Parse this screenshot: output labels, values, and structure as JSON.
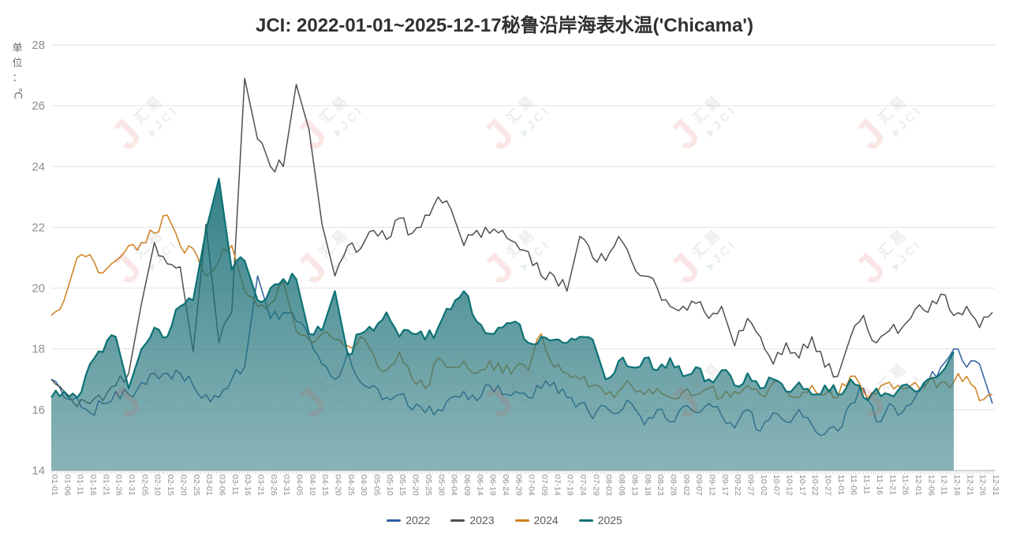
{
  "title": "JCI: 2022-01-01~2025-12-17秘鲁沿岸海表水温('Chicama')",
  "y_axis": {
    "unit_label": "单位：℃",
    "unit_chars": [
      "单",
      "位",
      "：",
      "℃"
    ],
    "ticks": [
      14,
      16,
      18,
      20,
      22,
      24,
      26,
      28
    ]
  },
  "watermark": {
    "logo_char": "J",
    "text_top": "汇易",
    "text_bottom": "JCI",
    "logo_color": "#d9534f",
    "triangle_color": "#5f9e5f",
    "text_color": "#808080",
    "opacity": 0.14,
    "cols": [
      140,
      375,
      612,
      848,
      1083
    ],
    "rows": [
      128,
      298,
      468
    ]
  },
  "legend": {
    "position": "bottom"
  },
  "chart_data": {
    "type": "line",
    "title": "JCI: 2022-01-01~2025-12-17秘鲁沿岸海表水温('Chicama')",
    "ylabel": "单位：℃",
    "ylim": [
      14,
      28
    ],
    "y_tick_step": 2,
    "grid": "horizontal",
    "legend_position": "bottom",
    "x_step_days": 5,
    "x_minor_tick_count": 366,
    "x": [
      "01-01",
      "01-06",
      "01-11",
      "01-16",
      "01-21",
      "01-26",
      "01-31",
      "02-05",
      "02-10",
      "02-15",
      "02-20",
      "02-25",
      "03-01",
      "03-06",
      "03-11",
      "03-16",
      "03-21",
      "03-26",
      "03-31",
      "04-05",
      "04-10",
      "04-15",
      "04-20",
      "04-25",
      "04-30",
      "05-05",
      "05-10",
      "05-15",
      "05-20",
      "05-25",
      "05-30",
      "06-04",
      "06-09",
      "06-14",
      "06-19",
      "06-24",
      "06-29",
      "07-04",
      "07-09",
      "07-14",
      "07-19",
      "07-24",
      "07-29",
      "08-03",
      "08-08",
      "08-13",
      "08-18",
      "08-23",
      "08-28",
      "09-02",
      "09-07",
      "09-12",
      "09-17",
      "09-22",
      "09-27",
      "10-02",
      "10-07",
      "10-12",
      "10-17",
      "10-22",
      "10-27",
      "11-01",
      "11-06",
      "11-11",
      "11-16",
      "11-21",
      "11-26",
      "12-01",
      "12-06",
      "12-11",
      "12-16",
      "12-21",
      "12-26",
      "12-31"
    ],
    "series": [
      {
        "name": "2022",
        "color": "#2d5f9f",
        "area": false,
        "values": [
          17.0,
          16.4,
          16.4,
          15.9,
          16.2,
          16.6,
          16.5,
          16.9,
          17.2,
          17.2,
          17.2,
          16.8,
          16.5,
          16.4,
          17.0,
          17.4,
          20.4,
          19.0,
          19.2,
          18.9,
          18.4,
          17.5,
          17.0,
          17.9,
          16.9,
          16.8,
          16.4,
          16.5,
          16.0,
          15.9,
          16.0,
          16.4,
          16.6,
          16.3,
          16.8,
          16.5,
          16.6,
          16.4,
          16.7,
          16.9,
          16.4,
          16.2,
          15.7,
          16.1,
          15.9,
          16.2,
          15.5,
          16.0,
          15.6,
          16.1,
          15.9,
          16.2,
          15.8,
          15.4,
          16.0,
          15.3,
          15.9,
          15.6,
          16.0,
          15.5,
          15.2,
          15.3,
          16.2,
          16.7,
          15.6,
          16.2,
          15.9,
          16.4,
          16.9,
          17.4,
          18.0,
          17.4,
          17.5,
          16.2
        ]
      },
      {
        "name": "2023",
        "color": "#4f4f4f",
        "area": false,
        "values": [
          17.0,
          16.6,
          16.1,
          16.2,
          16.3,
          16.8,
          17.2,
          19.5,
          21.5,
          20.8,
          20.7,
          17.9,
          22.1,
          18.2,
          19.2,
          26.9,
          24.9,
          24.0,
          24.0,
          26.7,
          25.2,
          22.1,
          20.4,
          21.4,
          21.3,
          21.9,
          21.6,
          22.3,
          21.8,
          22.4,
          23.0,
          22.6,
          21.4,
          21.9,
          21.8,
          21.9,
          21.5,
          21.2,
          20.4,
          20.4,
          19.9,
          21.7,
          21.0,
          20.9,
          21.7,
          20.9,
          20.4,
          20.0,
          19.4,
          19.4,
          19.5,
          19.0,
          19.4,
          18.1,
          19.0,
          18.4,
          17.5,
          18.2,
          17.7,
          18.4,
          17.4,
          17.1,
          18.4,
          19.1,
          18.2,
          18.6,
          18.7,
          19.3,
          19.2,
          19.8,
          19.1,
          19.4,
          18.7,
          19.2
        ]
      },
      {
        "name": "2024",
        "color": "#ce7f1e",
        "area": false,
        "values": [
          19.1,
          19.6,
          21.0,
          21.1,
          20.5,
          20.9,
          21.4,
          21.5,
          21.8,
          22.4,
          21.4,
          21.3,
          20.4,
          20.9,
          21.4,
          19.9,
          19.4,
          19.5,
          20.2,
          18.6,
          18.3,
          18.5,
          18.3,
          18.1,
          18.4,
          17.8,
          17.3,
          17.9,
          17.0,
          16.7,
          17.7,
          17.4,
          17.6,
          17.2,
          17.6,
          17.2,
          17.4,
          17.3,
          18.5,
          17.4,
          17.2,
          17.0,
          16.8,
          16.5,
          16.6,
          16.8,
          16.5,
          16.7,
          16.4,
          16.6,
          16.5,
          16.7,
          16.4,
          16.6,
          16.8,
          16.5,
          16.9,
          16.6,
          16.4,
          16.8,
          16.5,
          16.4,
          17.1,
          16.6,
          16.5,
          16.9,
          16.7,
          16.9,
          16.9,
          16.9,
          16.9,
          17.1,
          16.3,
          16.5
        ]
      },
      {
        "name": "2025",
        "color": "#0c7276",
        "area": true,
        "area_gradient_top": "rgba(4,100,108,0.82)",
        "area_gradient_bottom": "rgba(60,130,135,0.60)",
        "values": [
          16.4,
          16.6,
          16.4,
          17.5,
          17.9,
          18.4,
          16.7,
          18.0,
          18.7,
          18.4,
          19.4,
          19.6,
          21.9,
          23.6,
          20.6,
          20.9,
          19.6,
          20.0,
          20.3,
          20.3,
          18.5,
          18.6,
          19.9,
          17.8,
          18.5,
          18.6,
          19.2,
          18.4,
          18.5,
          18.3,
          18.7,
          19.3,
          19.9,
          18.9,
          18.5,
          18.7,
          18.9,
          18.2,
          18.4,
          18.3,
          18.2,
          18.4,
          18.3,
          17.0,
          17.6,
          17.4,
          17.7,
          17.3,
          17.7,
          17.1,
          17.4,
          17.0,
          17.3,
          16.8,
          17.2,
          16.7,
          17.0,
          16.6,
          16.9,
          16.5,
          16.8,
          16.5,
          17.0,
          16.4,
          16.7,
          16.5,
          16.8,
          16.6,
          17.0,
          17.2,
          17.9,
          null,
          null,
          null
        ]
      }
    ]
  }
}
